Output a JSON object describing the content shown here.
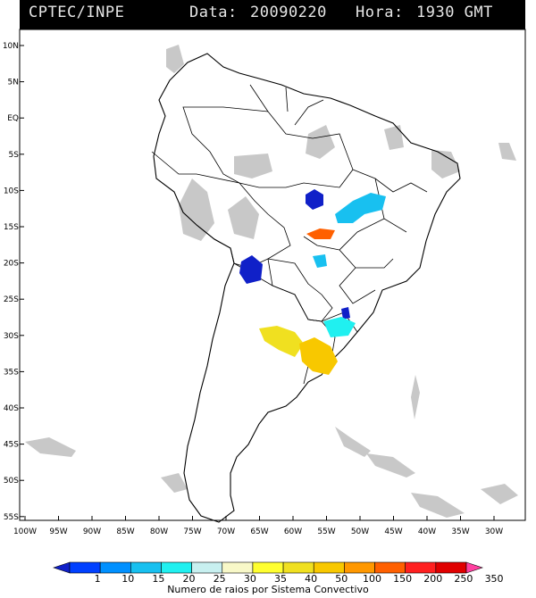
{
  "header": {
    "source": "CPTEC/INPE",
    "date_label": "Data:",
    "date_value": "20090220",
    "hour_label": "Hora:",
    "hour_value": "1930 GMT"
  },
  "axes": {
    "lat_labels": [
      "10N",
      "5N",
      "EQ",
      "5S",
      "10S",
      "15S",
      "20S",
      "25S",
      "30S",
      "35S",
      "40S",
      "45S",
      "50S",
      "55S"
    ],
    "lon_labels": [
      "100W",
      "95W",
      "90W",
      "85W",
      "80W",
      "75W",
      "70W",
      "65W",
      "60W",
      "55W",
      "50W",
      "45W",
      "40W",
      "35W",
      "30W"
    ]
  },
  "legend": {
    "title": "Numero de raios por Sistema Convectivo",
    "ticks": [
      "1",
      "10",
      "15",
      "20",
      "25",
      "30",
      "35",
      "40",
      "50",
      "100",
      "150",
      "200",
      "250",
      "350"
    ],
    "colors": [
      "#1020c8",
      "#0040ff",
      "#0090ff",
      "#18c0f0",
      "#20f0f0",
      "#c8f0f0",
      "#f8f8c8",
      "#ffff30",
      "#f0e020",
      "#f8c800",
      "#ff9800",
      "#ff6000",
      "#ff2020",
      "#e00000",
      "#ff40a0"
    ]
  },
  "colors": {
    "coast": "#000000",
    "cloud": "#c8c8c8",
    "header_bg": "#000000",
    "header_text": "#e6e6e6"
  }
}
